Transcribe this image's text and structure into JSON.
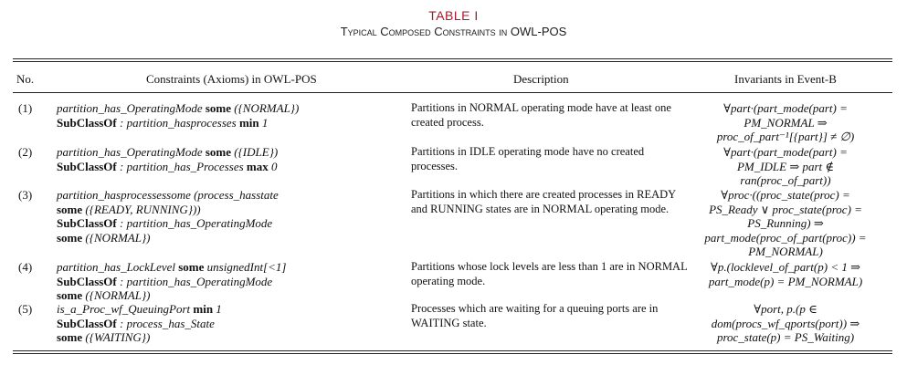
{
  "table": {
    "title": "TABLE I",
    "caption": "Typical Composed Constraints in OWL-POS",
    "headers": [
      "No.",
      "Constraints (Axioms) in OWL-POS",
      "Description",
      "Invariants in Event-B"
    ]
  },
  "rows": [
    {
      "no": "(1)",
      "constraint": [
        "partition_has_OperatingMode some ({NORMAL})",
        "SubClassOf : partition_hasprocesses min 1"
      ],
      "description": "Partitions in NORMAL operating mode have at least one created process.",
      "invariant": [
        "∀part·(part_mode(part) =",
        "PM_NORMAL ⇒",
        "proc_of_part⁻¹[{part}] ≠ ∅)"
      ]
    },
    {
      "no": "(2)",
      "constraint": [
        "partition_has_OperatingMode some ({IDLE})",
        "SubClassOf : partition_has_Processes max 0"
      ],
      "description": "Partitions in IDLE operating mode have no created processes.",
      "invariant": [
        "∀part·(part_mode(part) =",
        "PM_IDLE ⇒ part ∉",
        "ran(proc_of_part))"
      ]
    },
    {
      "no": "(3)",
      "constraint": [
        "partition_hasprocessessome (process_hasstate",
        "some ({READY, RUNNING}))",
        "SubClassOf : partition_has_OperatingMode",
        "some ({NORMAL})"
      ],
      "description": "Partitions in which there are created processes in READY and RUNNING states are in NORMAL operating mode.",
      "invariant": [
        "∀proc·((proc_state(proc) =",
        "PS_Ready ∨ proc_state(proc) =",
        "PS_Running) ⇒",
        "part_mode(proc_of_part(proc)) =",
        "PM_NORMAL)"
      ]
    },
    {
      "no": "(4)",
      "constraint": [
        "partition_has_LockLevel some unsignedInt[<1]",
        "SubClassOf : partition_has_OperatingMode",
        "some ({NORMAL})"
      ],
      "description": "Partitions whose lock levels are less than 1 are in NORMAL operating mode.",
      "invariant": [
        "∀p.(locklevel_of_part(p) < 1 ⇒",
        "part_mode(p) = PM_NORMAL)"
      ]
    },
    {
      "no": "(5)",
      "constraint": [
        "is_a_Proc_wf_QueuingPort min 1",
        "SubClassOf : process_has_State",
        "some ({WAITING})"
      ],
      "description": "Processes which are waiting for a queuing ports are in WAITING state.",
      "invariant": [
        "∀port, p.(p ∈",
        "dom(procs_wf_qports(port)) ⇒",
        "proc_state(p) = PS_Waiting)"
      ]
    }
  ]
}
